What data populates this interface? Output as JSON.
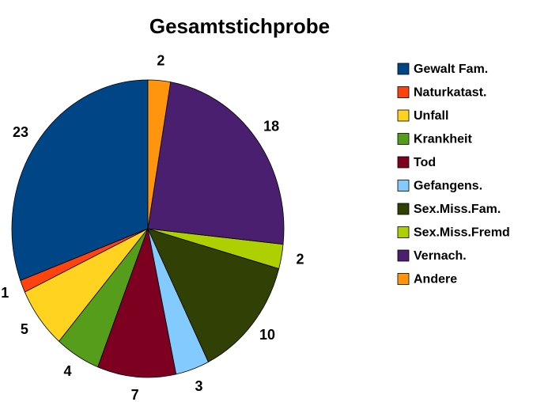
{
  "chart_data": {
    "type": "pie",
    "title": "Gesamtstichprobe",
    "categories": [
      "Gewalt Fam.",
      "Naturkatast.",
      "Unfall",
      "Krankheit",
      "Tod",
      "Gefangens.",
      "Sex.Miss.Fam.",
      "Sex.Miss.Fremd",
      "Vernach.",
      "Andere"
    ],
    "values": [
      23,
      1,
      5,
      4,
      7,
      3,
      10,
      2,
      18,
      2
    ],
    "colors": [
      "#004586",
      "#ff420e",
      "#ffd320",
      "#579d1c",
      "#7e0021",
      "#83caff",
      "#314004",
      "#aecf00",
      "#4b1f6f",
      "#ff950e"
    ],
    "legend": "right"
  }
}
